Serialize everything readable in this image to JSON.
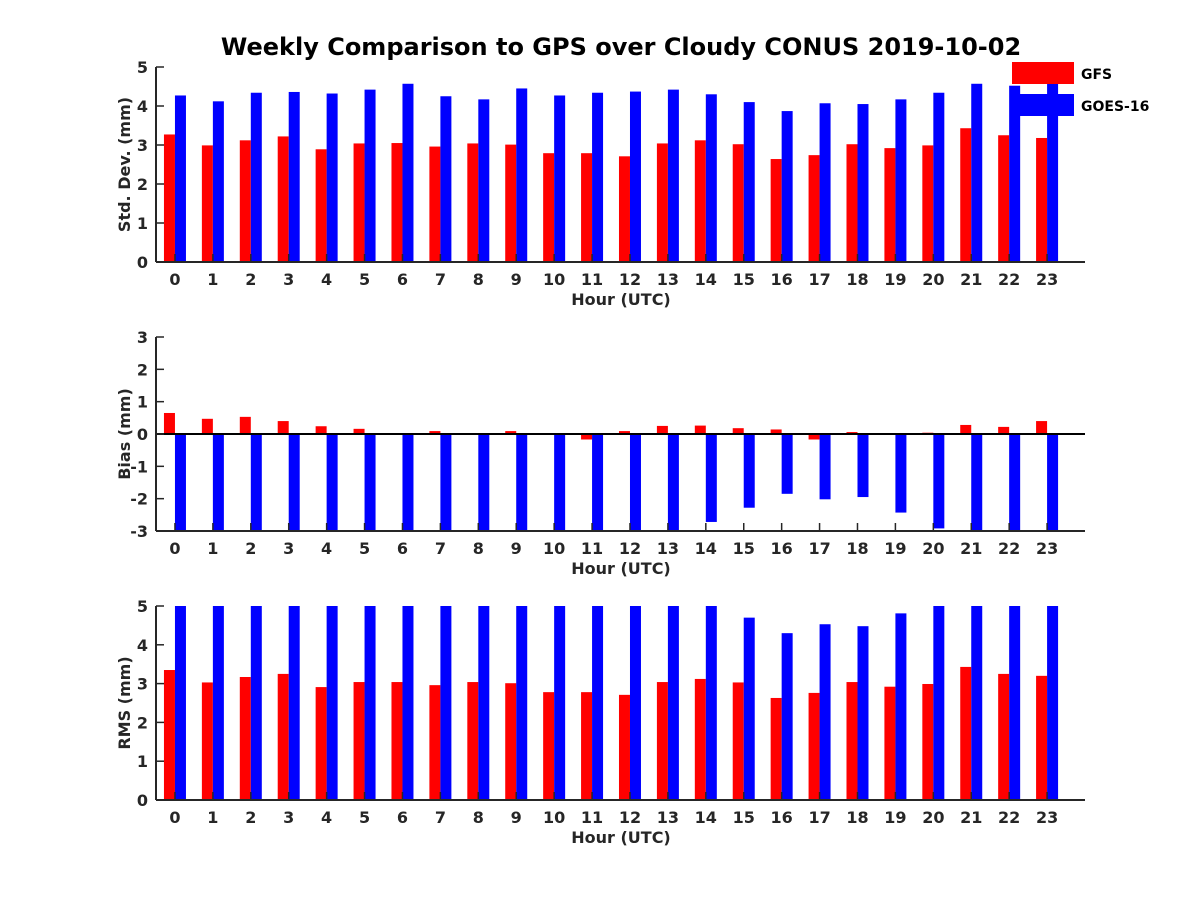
{
  "title": "Weekly Comparison to GPS over Cloudy CONUS 2019-10-02",
  "legend": {
    "position": "top-right",
    "entries": [
      {
        "name": "GFS",
        "color": "#ff0000"
      },
      {
        "name": "GOES-16",
        "color": "#0000ff"
      }
    ]
  },
  "chart_data": [
    {
      "type": "bar",
      "ylabel": "Std. Dev. (mm)",
      "xlabel": "Hour (UTC)",
      "ylim": [
        0,
        5
      ],
      "yticks": [
        "0",
        "1",
        "2",
        "3",
        "4",
        "5"
      ],
      "categories": [
        "0",
        "1",
        "2",
        "3",
        "4",
        "5",
        "6",
        "7",
        "8",
        "9",
        "10",
        "11",
        "12",
        "13",
        "14",
        "15",
        "16",
        "17",
        "18",
        "19",
        "20",
        "21",
        "22",
        "23"
      ],
      "series": [
        {
          "name": "GFS",
          "color": "#ff0000",
          "values": [
            3.27,
            2.99,
            3.12,
            3.22,
            2.89,
            3.04,
            3.05,
            2.96,
            3.04,
            3.01,
            2.79,
            2.79,
            2.71,
            3.04,
            3.12,
            3.02,
            2.64,
            2.74,
            3.02,
            2.92,
            2.99,
            3.43,
            3.25,
            3.18
          ]
        },
        {
          "name": "GOES-16",
          "color": "#0000ff",
          "values": [
            4.27,
            4.12,
            4.34,
            4.36,
            4.32,
            4.42,
            4.57,
            4.25,
            4.17,
            4.45,
            4.27,
            4.34,
            4.37,
            4.42,
            4.3,
            4.1,
            3.87,
            4.07,
            4.05,
            4.17,
            4.34,
            4.57,
            4.52,
            4.62
          ]
        }
      ]
    },
    {
      "type": "bar",
      "ylabel": "Bias (mm)",
      "xlabel": "Hour (UTC)",
      "ylim": [
        -3,
        3
      ],
      "yticks": [
        "-3",
        "-2",
        "-1",
        "0",
        "1",
        "2",
        "3"
      ],
      "categories": [
        "0",
        "1",
        "2",
        "3",
        "4",
        "5",
        "6",
        "7",
        "8",
        "9",
        "10",
        "11",
        "12",
        "13",
        "14",
        "15",
        "16",
        "17",
        "18",
        "19",
        "20",
        "21",
        "22",
        "23"
      ],
      "series": [
        {
          "name": "GFS",
          "color": "#ff0000",
          "values": [
            0.65,
            0.47,
            0.53,
            0.4,
            0.24,
            0.16,
            0.01,
            0.09,
            0.03,
            0.09,
            -0.01,
            -0.17,
            0.09,
            0.25,
            0.26,
            0.18,
            0.14,
            -0.17,
            0.06,
            0.01,
            0.04,
            0.28,
            0.22,
            0.4
          ]
        },
        {
          "name": "GOES-16",
          "color": "#0000ff",
          "values": [
            -3.0,
            -3.0,
            -3.0,
            -3.0,
            -3.0,
            -3.0,
            -3.0,
            -3.0,
            -3.0,
            -3.0,
            -3.0,
            -3.0,
            -3.0,
            -3.0,
            -2.72,
            -2.28,
            -1.85,
            -2.02,
            -1.95,
            -2.43,
            -2.92,
            -3.0,
            -3.0,
            -3.0
          ]
        }
      ]
    },
    {
      "type": "bar",
      "ylabel": "RMS (mm)",
      "xlabel": "Hour (UTC)",
      "ylim": [
        0,
        5
      ],
      "yticks": [
        "0",
        "1",
        "2",
        "3",
        "4",
        "5"
      ],
      "categories": [
        "0",
        "1",
        "2",
        "3",
        "4",
        "5",
        "6",
        "7",
        "8",
        "9",
        "10",
        "11",
        "12",
        "13",
        "14",
        "15",
        "16",
        "17",
        "18",
        "19",
        "20",
        "21",
        "22",
        "23"
      ],
      "series": [
        {
          "name": "GFS",
          "color": "#ff0000",
          "values": [
            3.35,
            3.03,
            3.17,
            3.25,
            2.91,
            3.04,
            3.04,
            2.96,
            3.04,
            3.01,
            2.78,
            2.78,
            2.71,
            3.04,
            3.12,
            3.03,
            2.63,
            2.76,
            3.04,
            2.92,
            2.99,
            3.43,
            3.25,
            3.2
          ]
        },
        {
          "name": "GOES-16",
          "color": "#0000ff",
          "values": [
            5,
            5,
            5,
            5,
            5,
            5,
            5,
            5,
            5,
            5,
            5,
            5,
            5,
            5,
            5,
            4.7,
            4.3,
            4.53,
            4.48,
            4.81,
            5,
            5,
            5,
            5
          ]
        }
      ]
    }
  ]
}
